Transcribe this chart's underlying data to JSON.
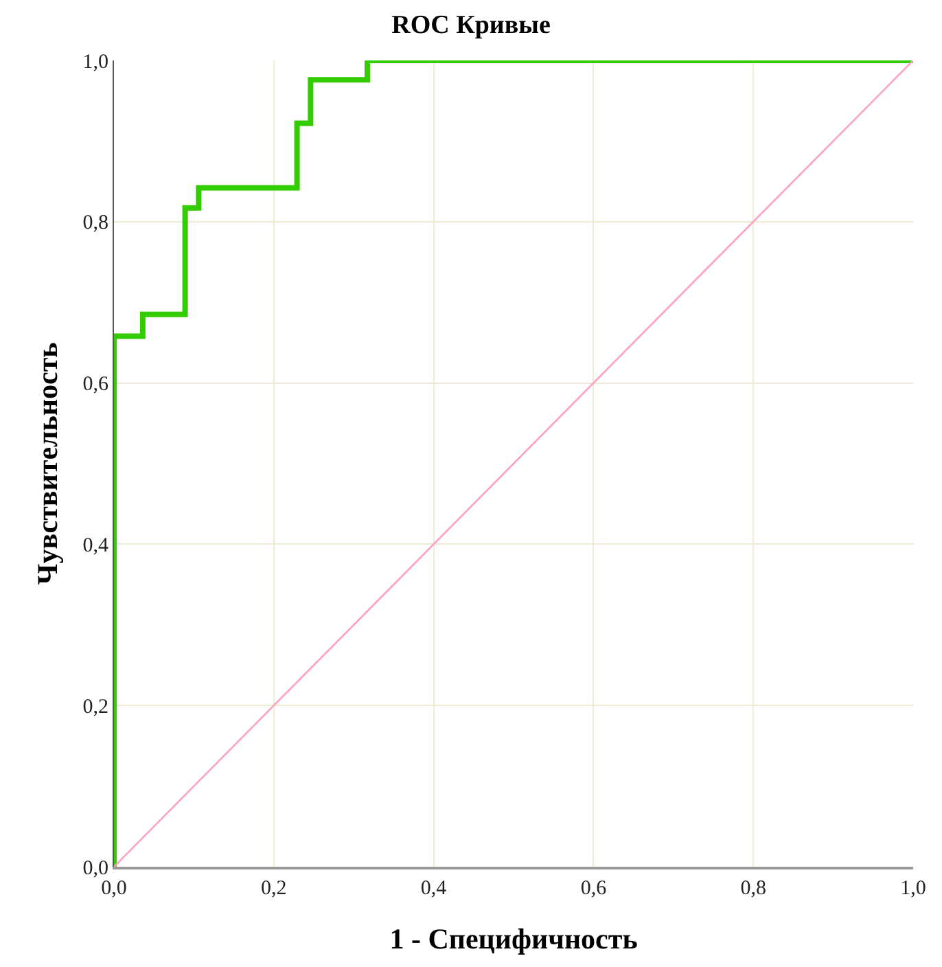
{
  "chart_data": {
    "type": "step",
    "title": "ROC Кривые",
    "xlabel": "1 - Специфичность",
    "ylabel": "Чувствительность",
    "series": [
      {
        "color": "#33cc00",
        "x": [
          0,
          0,
          0.036,
          0.089,
          0.106,
          0.229,
          0.246,
          0.317,
          1
        ],
        "values": [
          0,
          0.658,
          0.685,
          0.817,
          0.842,
          0.922,
          0.976,
          1,
          1
        ]
      },
      {
        "type": "line",
        "color": "#ffa0c0",
        "x": [
          0,
          1
        ],
        "values": [
          0,
          1
        ]
      }
    ],
    "xlim": [
      0,
      1
    ],
    "ylim": [
      0,
      1
    ],
    "xticks": [
      {
        "value": 0,
        "label": "0,0"
      },
      {
        "value": 0.2,
        "label": "0,2"
      },
      {
        "value": 0.4,
        "label": "0,4"
      },
      {
        "value": 0.6,
        "label": "0,6"
      },
      {
        "value": 0.8,
        "label": "0,8"
      },
      {
        "value": 1,
        "label": "1,0"
      }
    ],
    "yticks": [
      {
        "value": 0,
        "label": "0,0"
      },
      {
        "value": 0.2,
        "label": "0,2"
      },
      {
        "value": 0.4,
        "label": "0,4"
      },
      {
        "value": 0.6,
        "label": "0,6"
      },
      {
        "value": 0.8,
        "label": "0,8"
      },
      {
        "value": 1,
        "label": "1,0"
      }
    ],
    "grid": true,
    "legend": false
  }
}
